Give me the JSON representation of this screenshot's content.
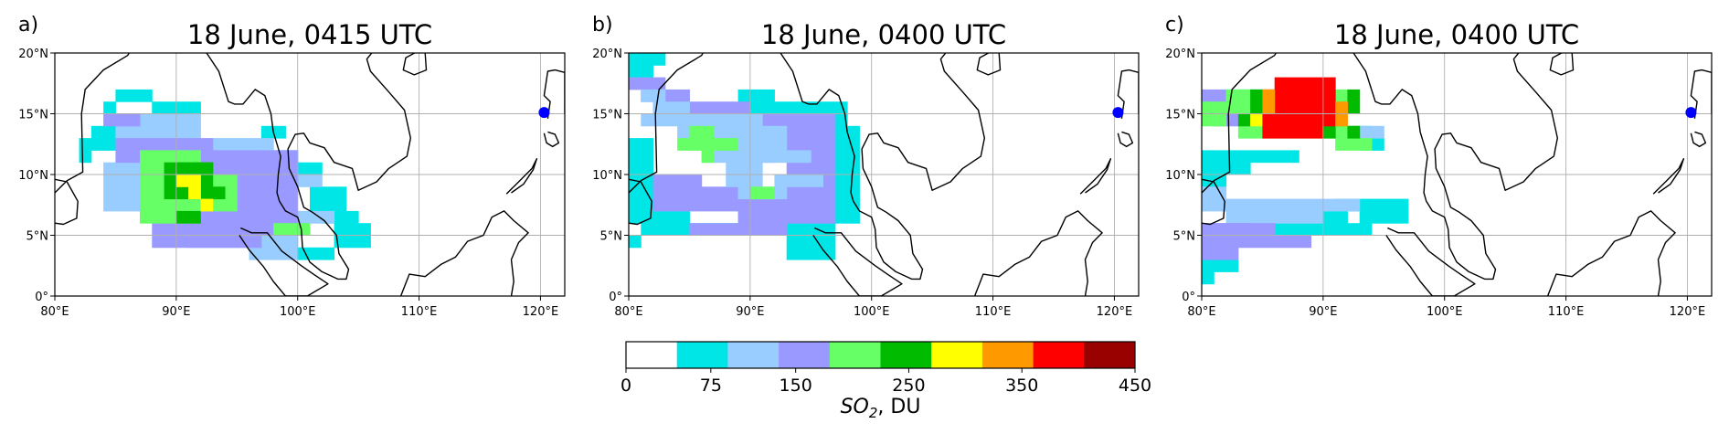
{
  "panels": [
    {
      "label": "a)",
      "title": "18 June, 0415 UTC"
    },
    {
      "label": "b)",
      "title": "18 June, 0400 UTC"
    },
    {
      "label": "c)",
      "title": "18 June, 0400 UTC"
    }
  ],
  "axes": {
    "lon_ticks": [
      "80°E",
      "90°E",
      "100°E",
      "110°E",
      "120°E"
    ],
    "lat_ticks": [
      "0°",
      "5°N",
      "10°N",
      "15°N",
      "20°N"
    ],
    "lon_range": [
      80,
      122
    ],
    "lat_range": [
      0,
      20
    ],
    "grid": true
  },
  "marker": {
    "lon": 120.3,
    "lat": 15.1,
    "color": "#0000ff"
  },
  "colorbar": {
    "label_main": "SO",
    "label_sub": "2",
    "label_rest": ", DU",
    "ticks": [
      "0",
      "75",
      "150",
      "250",
      "350",
      "450"
    ],
    "colors": [
      "#ffffff",
      "#00e6e6",
      "#99ccff",
      "#9999ff",
      "#66ff66",
      "#00bb00",
      "#ffff00",
      "#ff9900",
      "#ff0000",
      "#990000"
    ]
  },
  "chart_data": {
    "type": "heatmap",
    "panels": [
      {
        "title": "18 June, 0415 UTC",
        "cell_deg": 1,
        "rects": [
          [
            84,
            15,
            1,
            1,
            1
          ],
          [
            85,
            16,
            3,
            1,
            1
          ],
          [
            88,
            15,
            4,
            1,
            1
          ],
          [
            83,
            13,
            2,
            1,
            1
          ],
          [
            82,
            12,
            3,
            1,
            1
          ],
          [
            82,
            11,
            1,
            1,
            1
          ],
          [
            97,
            13,
            2,
            1,
            1
          ],
          [
            98,
            11,
            2,
            1,
            1
          ],
          [
            100,
            10,
            2,
            1,
            1
          ],
          [
            101,
            7,
            3,
            2,
            1
          ],
          [
            102,
            6,
            3,
            1,
            1
          ],
          [
            103,
            5,
            3,
            1,
            1
          ],
          [
            103,
            4,
            3,
            1,
            1
          ],
          [
            100,
            3,
            3,
            1,
            1
          ],
          [
            85,
            13,
            7,
            2,
            2
          ],
          [
            84,
            7,
            4,
            4,
            2
          ],
          [
            93,
            12,
            5,
            1,
            2
          ],
          [
            97,
            11,
            3,
            1,
            2
          ],
          [
            99,
            9,
            3,
            1,
            2
          ],
          [
            100,
            6,
            3,
            1,
            2
          ],
          [
            96,
            3,
            4,
            2,
            2
          ],
          [
            91,
            4,
            6,
            1,
            2
          ],
          [
            86,
            8,
            3,
            1,
            2
          ],
          [
            84,
            14,
            3,
            1,
            3
          ],
          [
            85,
            11,
            3,
            2,
            3
          ],
          [
            88,
            11,
            5,
            2,
            3
          ],
          [
            88,
            4,
            9,
            2,
            3
          ],
          [
            92,
            6,
            8,
            6,
            3
          ],
          [
            97,
            9,
            3,
            2,
            3
          ],
          [
            95,
            5,
            5,
            2,
            3
          ],
          [
            89,
            5,
            3,
            1,
            3
          ],
          [
            87,
            6,
            5,
            5,
            4
          ],
          [
            92,
            7,
            3,
            3,
            4
          ],
          [
            87,
            11,
            5,
            1,
            4
          ],
          [
            98,
            5,
            3,
            1,
            4
          ],
          [
            89,
            8,
            4,
            3,
            5
          ],
          [
            90,
            10,
            3,
            1,
            5
          ],
          [
            90,
            6,
            2,
            1,
            5
          ],
          [
            92,
            8,
            2,
            1,
            5
          ],
          [
            91,
            8,
            1,
            2,
            6
          ],
          [
            92,
            7,
            1,
            1,
            6
          ],
          [
            90,
            9,
            1,
            1,
            6
          ]
        ]
      },
      {
        "title": "18 June, 0400 UTC",
        "cell_deg": 1,
        "rects": [
          [
            80,
            19,
            3,
            1,
            1
          ],
          [
            80,
            18,
            2,
            1,
            1
          ],
          [
            89,
            16,
            3,
            1,
            1
          ],
          [
            90,
            15,
            8,
            1,
            1
          ],
          [
            97,
            14,
            1,
            1,
            1
          ],
          [
            97,
            6,
            2,
            8,
            1
          ],
          [
            80,
            6,
            2,
            7,
            1
          ],
          [
            81,
            6,
            4,
            1,
            1
          ],
          [
            81,
            5,
            9,
            1,
            1
          ],
          [
            80,
            4,
            1,
            1,
            1
          ],
          [
            93,
            4,
            4,
            2,
            1
          ],
          [
            93,
            3,
            4,
            1,
            1
          ],
          [
            80,
            17,
            3,
            1,
            3
          ],
          [
            81,
            16,
            4,
            1,
            3
          ],
          [
            82,
            15,
            8,
            1,
            3
          ],
          [
            90,
            13,
            7,
            2,
            3
          ],
          [
            93,
            11,
            4,
            2,
            3
          ],
          [
            93,
            8,
            4,
            3,
            3
          ],
          [
            89,
            6,
            8,
            2,
            3
          ],
          [
            86,
            7,
            3,
            2,
            3
          ],
          [
            82,
            7,
            4,
            3,
            3
          ],
          [
            85,
            5,
            8,
            1,
            3
          ],
          [
            81,
            16,
            2,
            1,
            2
          ],
          [
            82,
            15,
            3,
            1,
            2
          ],
          [
            81,
            14,
            10,
            1,
            2
          ],
          [
            84,
            13,
            9,
            1,
            2
          ],
          [
            85,
            12,
            8,
            1,
            2
          ],
          [
            86,
            11,
            6,
            1,
            2
          ],
          [
            88,
            10,
            3,
            1,
            2
          ],
          [
            88,
            9,
            3,
            1,
            2
          ],
          [
            92,
            9,
            4,
            1,
            2
          ],
          [
            89,
            8,
            4,
            1,
            2
          ],
          [
            90,
            11,
            5,
            1,
            2
          ],
          [
            84,
            12,
            2,
            1,
            4
          ],
          [
            85,
            13,
            2,
            1,
            4
          ],
          [
            86,
            12,
            3,
            1,
            4
          ],
          [
            86,
            11,
            1,
            1,
            4
          ],
          [
            90,
            8,
            2,
            1,
            4
          ]
        ]
      },
      {
        "title": "18 June, 0400 UTC",
        "cell_deg": 1,
        "rects": [
          [
            80,
            11,
            8,
            1,
            1
          ],
          [
            80,
            10,
            4,
            1,
            1
          ],
          [
            80,
            9,
            2,
            1,
            1
          ],
          [
            80,
            1,
            1,
            1,
            1
          ],
          [
            80,
            2,
            3,
            1,
            1
          ],
          [
            91,
            7,
            6,
            1,
            1
          ],
          [
            93,
            6,
            4,
            1,
            1
          ],
          [
            90,
            6,
            2,
            1,
            1
          ],
          [
            86,
            5,
            5,
            1,
            1
          ],
          [
            91,
            5,
            3,
            1,
            1
          ],
          [
            93,
            12,
            2,
            1,
            1
          ],
          [
            82,
            16,
            3,
            1,
            1
          ],
          [
            91,
            13,
            3,
            1,
            1
          ],
          [
            80,
            7,
            13,
            1,
            2
          ],
          [
            80,
            8,
            2,
            1,
            2
          ],
          [
            82,
            6,
            8,
            1,
            2
          ],
          [
            92,
            13,
            3,
            1,
            2
          ],
          [
            80,
            16,
            2,
            1,
            3
          ],
          [
            80,
            3,
            3,
            2,
            3
          ],
          [
            80,
            5,
            3,
            1,
            3
          ],
          [
            83,
            5,
            1,
            1,
            3
          ],
          [
            83,
            4,
            6,
            1,
            3
          ],
          [
            81,
            5,
            5,
            1,
            3
          ],
          [
            81,
            14,
            2,
            2,
            3
          ],
          [
            82,
            15,
            2,
            2,
            4
          ],
          [
            83,
            13,
            3,
            1,
            4
          ],
          [
            86,
            13,
            5,
            1,
            4
          ],
          [
            91,
            13,
            2,
            1,
            4
          ],
          [
            91,
            12,
            3,
            1,
            4
          ],
          [
            83,
            16,
            9,
            1,
            4
          ],
          [
            80,
            14,
            2,
            2,
            4
          ],
          [
            84,
            15,
            1,
            2,
            5
          ],
          [
            83,
            14,
            1,
            1,
            5
          ],
          [
            90,
            13,
            1,
            1,
            5
          ],
          [
            92,
            13,
            1,
            1,
            5
          ],
          [
            92,
            15,
            1,
            2,
            5
          ],
          [
            84,
            14,
            1,
            1,
            6
          ],
          [
            85,
            14,
            6,
            3,
            8
          ],
          [
            85,
            15,
            1,
            2,
            7
          ],
          [
            91,
            14,
            1,
            2,
            7
          ],
          [
            85,
            13,
            5,
            1,
            8
          ],
          [
            86,
            17,
            5,
            1,
            8
          ]
        ]
      }
    ]
  }
}
